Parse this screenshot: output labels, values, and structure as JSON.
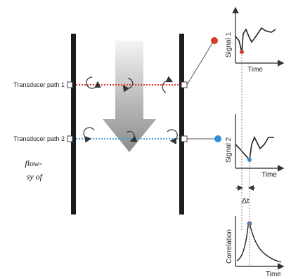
{
  "transducers": {
    "path1_label": "Transducer path 1",
    "path2_label": "Transducer path 2"
  },
  "signal1": {
    "axis_label": "Signal 1",
    "time_label": "Time"
  },
  "signal2": {
    "axis_label": "Signal 2",
    "time_label": "Time"
  },
  "delay_label": "Δt",
  "correlation": {
    "axis_label": "Correlation",
    "time_label": "Time"
  },
  "caption_fragments": {
    "line1": "flow-",
    "line2": "sy of"
  },
  "colors": {
    "wall": "#1c1c1c",
    "path1_dots": "#e03a2f",
    "path2_dots": "#3aa7e0",
    "sensor1": "#d43a2a",
    "sensor2": "#2f8fd8",
    "flow_arrow_top": "#f2f2f2",
    "flow_arrow_bottom": "#8a8a8a"
  },
  "icons": {
    "eddy": "circular-arrow-icon",
    "flow": "down-arrow-icon"
  }
}
